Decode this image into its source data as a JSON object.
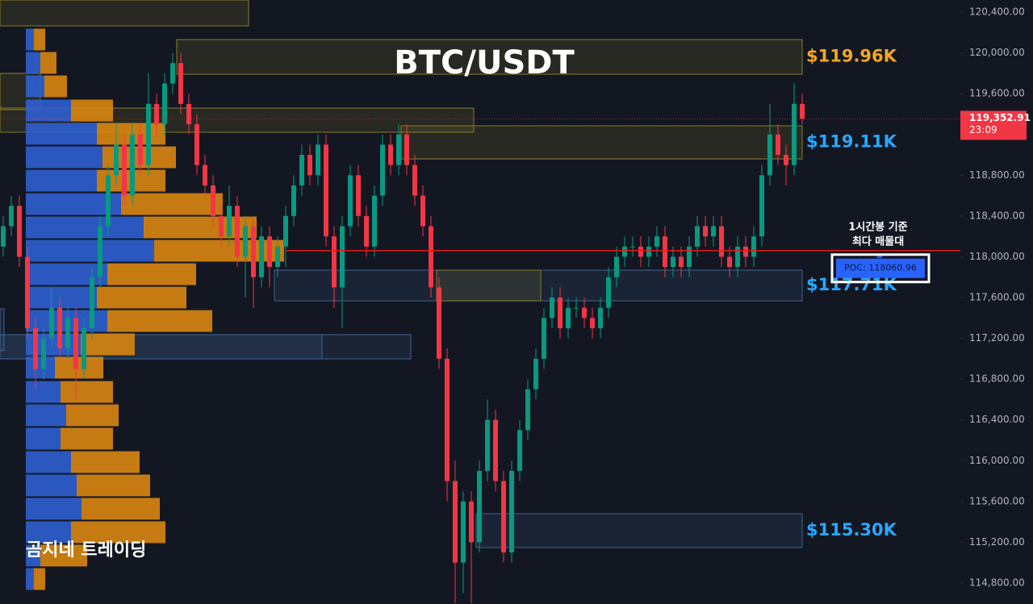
{
  "chart_data": {
    "type": "candlestick",
    "title": "BTC/USDT",
    "watermark": "곰지네 트레이딩",
    "annotation": [
      "1시간봉 기준",
      "최다 매물대"
    ],
    "up_color": "#089981",
    "down_color": "#f23645",
    "ylim": [
      114594,
      120519
    ],
    "yticks": [
      {
        "value": 120400,
        "label": "120,400.00"
      },
      {
        "value": 120000,
        "label": "120,000.00"
      },
      {
        "value": 119600,
        "label": "119,600.00"
      },
      {
        "value": 119200,
        "label": "119,200.00"
      },
      {
        "value": 118800,
        "label": "118,800.00"
      },
      {
        "value": 118400,
        "label": "118,400.00"
      },
      {
        "value": 118000,
        "label": "118,000.00"
      },
      {
        "value": 117600,
        "label": "117,600.00"
      },
      {
        "value": 117200,
        "label": "117,200.00"
      },
      {
        "value": 116800,
        "label": "116,800.00"
      },
      {
        "value": 116400,
        "label": "116,400.00"
      },
      {
        "value": 116000,
        "label": "116,000.00"
      },
      {
        "value": 115600,
        "label": "115,600.00"
      },
      {
        "value": 115200,
        "label": "115,200.00"
      },
      {
        "value": 114800,
        "label": "114,800.00"
      }
    ],
    "last_price": {
      "value": 119352.91,
      "label": "119,352.91"
    },
    "countdown": "23:09",
    "poc": {
      "value": 118060.96,
      "label": "POC: 118060.96"
    },
    "ohlc": [
      [
        118100,
        118400,
        118000,
        118300
      ],
      [
        118300,
        118600,
        118200,
        118500
      ],
      [
        118500,
        118600,
        117900,
        118000
      ],
      [
        118000,
        118100,
        117200,
        117300
      ],
      [
        117300,
        117400,
        116700,
        116900
      ],
      [
        116900,
        117300,
        116800,
        117200
      ],
      [
        117200,
        117700,
        117100,
        117500
      ],
      [
        117500,
        117600,
        117000,
        117100
      ],
      [
        117100,
        117500,
        117000,
        117400
      ],
      [
        117400,
        117500,
        116600,
        116900
      ],
      [
        116900,
        117400,
        116800,
        117300
      ],
      [
        117300,
        117900,
        117200,
        117800
      ],
      [
        117800,
        118400,
        117700,
        118300
      ],
      [
        118300,
        118900,
        118200,
        118800
      ],
      [
        118800,
        119300,
        118700,
        119100
      ],
      [
        119100,
        119200,
        118500,
        118600
      ],
      [
        118600,
        119300,
        118500,
        119200
      ],
      [
        119200,
        119300,
        118800,
        118900
      ],
      [
        118900,
        119800,
        118800,
        119500
      ],
      [
        119500,
        119600,
        119200,
        119300
      ],
      [
        119300,
        119800,
        119200,
        119700
      ],
      [
        119700,
        120000,
        119600,
        119900
      ],
      [
        119900,
        120000,
        119400,
        119500
      ],
      [
        119500,
        119600,
        119200,
        119300
      ],
      [
        119300,
        119400,
        118800,
        118900
      ],
      [
        118900,
        119000,
        118600,
        118700
      ],
      [
        118700,
        118800,
        118300,
        118400
      ],
      [
        118400,
        118500,
        118100,
        118200
      ],
      [
        118200,
        118700,
        118100,
        118500
      ],
      [
        118500,
        118600,
        117900,
        118000
      ],
      [
        118000,
        118400,
        117600,
        118300
      ],
      [
        118300,
        118400,
        117500,
        117800
      ],
      [
        117800,
        118300,
        117700,
        118200
      ],
      [
        118200,
        118300,
        117700,
        117900
      ],
      [
        117900,
        118200,
        117800,
        118100
      ],
      [
        118100,
        118500,
        117900,
        118400
      ],
      [
        118400,
        118800,
        118300,
        118700
      ],
      [
        118700,
        119100,
        118600,
        119000
      ],
      [
        119000,
        119100,
        118700,
        118800
      ],
      [
        118800,
        119200,
        118700,
        119100
      ],
      [
        119100,
        119200,
        118100,
        118200
      ],
      [
        118200,
        118300,
        117500,
        117700
      ],
      [
        117700,
        118400,
        117300,
        118300
      ],
      [
        118300,
        118900,
        118200,
        118800
      ],
      [
        118800,
        118900,
        118300,
        118400
      ],
      [
        118400,
        118500,
        118000,
        118100
      ],
      [
        118100,
        118700,
        118000,
        118600
      ],
      [
        118600,
        119200,
        118500,
        119100
      ],
      [
        119100,
        119200,
        118800,
        118900
      ],
      [
        118900,
        119300,
        118800,
        119200
      ],
      [
        119200,
        119300,
        118800,
        118900
      ],
      [
        118900,
        119000,
        118500,
        118600
      ],
      [
        118600,
        118700,
        118200,
        118300
      ],
      [
        118300,
        118400,
        117600,
        117700
      ],
      [
        117700,
        117800,
        116900,
        117000
      ],
      [
        117000,
        117100,
        115600,
        115800
      ],
      [
        115800,
        116000,
        114600,
        115000
      ],
      [
        115000,
        115700,
        114700,
        115600
      ],
      [
        115600,
        115700,
        114600,
        115200
      ],
      [
        115200,
        116000,
        115100,
        115900
      ],
      [
        115900,
        116600,
        115800,
        116400
      ],
      [
        116400,
        116500,
        115700,
        115800
      ],
      [
        115800,
        115900,
        115000,
        115100
      ],
      [
        115100,
        116000,
        115000,
        115900
      ],
      [
        115900,
        116400,
        115800,
        116300
      ],
      [
        116300,
        116800,
        116200,
        116700
      ],
      [
        116700,
        117100,
        116600,
        117000
      ],
      [
        117000,
        117500,
        116900,
        117400
      ],
      [
        117400,
        117700,
        117300,
        117600
      ],
      [
        117600,
        117700,
        117200,
        117300
      ],
      [
        117300,
        117600,
        117200,
        117500
      ],
      [
        117500,
        117600,
        117400,
        117500
      ],
      [
        117500,
        117600,
        117300,
        117400
      ],
      [
        117400,
        117500,
        117200,
        117300
      ],
      [
        117300,
        117600,
        117200,
        117500
      ],
      [
        117500,
        117900,
        117400,
        117800
      ],
      [
        117800,
        118100,
        117700,
        118000
      ],
      [
        118000,
        118200,
        117900,
        118100
      ],
      [
        118100,
        118200,
        118000,
        118100
      ],
      [
        118100,
        118200,
        117900,
        118000
      ],
      [
        118000,
        118200,
        117900,
        118100
      ],
      [
        118100,
        118300,
        118000,
        118200
      ],
      [
        118200,
        118300,
        117800,
        117900
      ],
      [
        117900,
        118100,
        117800,
        118000
      ],
      [
        118000,
        118100,
        117800,
        117900
      ],
      [
        117900,
        118200,
        117800,
        118100
      ],
      [
        118100,
        118400,
        118000,
        118300
      ],
      [
        118300,
        118400,
        118100,
        118200
      ],
      [
        118200,
        118400,
        118100,
        118300
      ],
      [
        118300,
        118400,
        117900,
        118000
      ],
      [
        118000,
        118100,
        117800,
        117900
      ],
      [
        117900,
        118200,
        117800,
        118100
      ],
      [
        118100,
        118200,
        117900,
        118000
      ],
      [
        118000,
        118300,
        117900,
        118200
      ],
      [
        118200,
        118900,
        118100,
        118800
      ],
      [
        118800,
        119500,
        118700,
        119200
      ],
      [
        119200,
        119300,
        118900,
        119000
      ],
      [
        119000,
        119100,
        118700,
        118900
      ],
      [
        118900,
        119700,
        118800,
        119500
      ],
      [
        119500,
        119600,
        119300,
        119353
      ]
    ],
    "volume_profile": {
      "buy_color": "#2f5fd0",
      "sell_color": "#d9860f",
      "levels": [
        120131,
        119902,
        119672,
        119435,
        119206,
        118976,
        118747,
        118517,
        118288,
        118059,
        117829,
        117600,
        117370,
        117141,
        116912,
        116674,
        116445,
        116216,
        115986,
        115757,
        115528,
        115298,
        115069,
        114839
      ],
      "buy": [
        10,
        18,
        23,
        56,
        88,
        95,
        88,
        118,
        146,
        159,
        101,
        88,
        101,
        68,
        36,
        43,
        50,
        43,
        56,
        63,
        69,
        56,
        18,
        10
      ],
      "sell": [
        14,
        20,
        28,
        52,
        85,
        91,
        85,
        126,
        140,
        161,
        110,
        111,
        130,
        67,
        60,
        65,
        65,
        65,
        85,
        91,
        97,
        117,
        58,
        14
      ]
    },
    "zones": [
      {
        "top": 120519,
        "bottom": 120265,
        "color": "#8a7d2a"
      },
      {
        "top": 120131,
        "bottom": 119791,
        "color": "#8a7d2a",
        "label": "$119.96K",
        "label_color": "#f5a623"
      },
      {
        "top": 119799,
        "bottom": 119443,
        "color": "#8a7d2a"
      },
      {
        "top": 119459,
        "bottom": 119222,
        "color": "#8a7d2a"
      },
      {
        "top": 119285,
        "bottom": 118960,
        "color": "#8a7d2a",
        "label": "$119.11K",
        "label_color": "#2aa7ff"
      },
      {
        "top": 117869,
        "bottom": 117568,
        "color": "#3d6590",
        "label": "$117.71K",
        "label_color": "#2aa7ff"
      },
      {
        "top": 117869,
        "bottom": 117568,
        "color": "#8a7d2a"
      },
      {
        "top": 117236,
        "bottom": 116999,
        "color": "#3d6590"
      },
      {
        "top": 117236,
        "bottom": 116999,
        "color": "#3d6590"
      },
      {
        "top": 115480,
        "bottom": 115148,
        "color": "#3d6590",
        "label": "$115.30K",
        "label_color": "#2aa7ff"
      },
      {
        "top": 117489,
        "bottom": 117080,
        "color": "#3d6590"
      }
    ]
  }
}
